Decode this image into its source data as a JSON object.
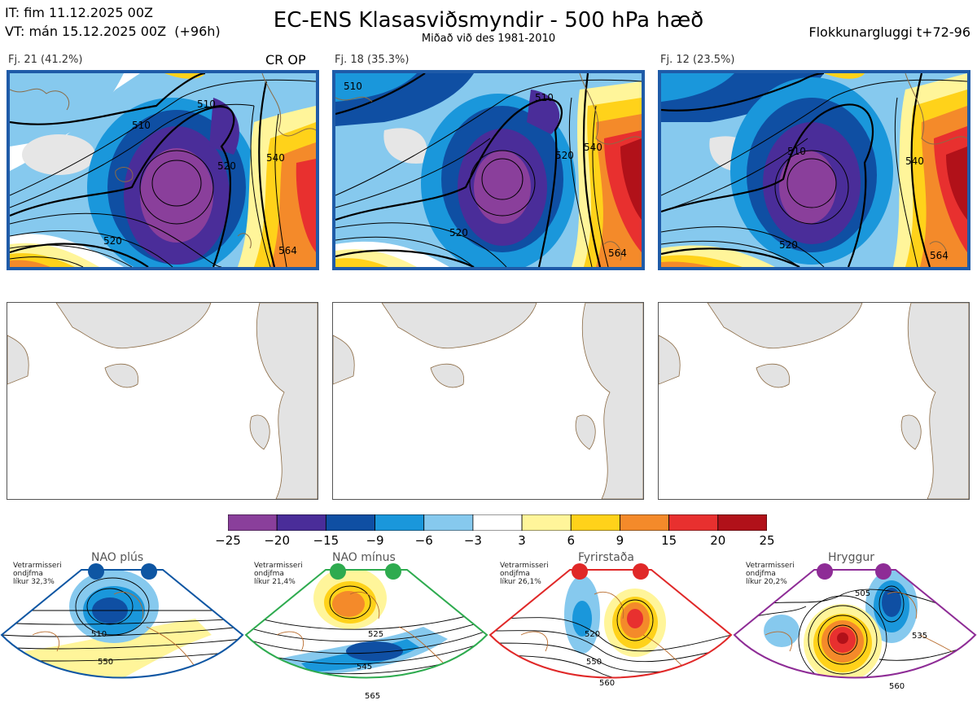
{
  "header": {
    "it_line": "IT: fim 11.12.2025 00Z",
    "vt_line": "VT: mán 15.12.2025 00Z  (+96h)",
    "title": "EC-ENS Klasasviðsmyndir - 500 hPa hæð",
    "subtitle": "Miðað við des 1981-2010",
    "window": "Flokkunargluggi t+72-96"
  },
  "clusters": [
    {
      "label": "Fj. 21 (41.2%)",
      "tag": "CR OP",
      "contours": [
        "510",
        "510",
        "520",
        "520",
        "540",
        "564"
      ]
    },
    {
      "label": "Fj. 18 (35.3%)",
      "tag": "",
      "contours": [
        "510",
        "510",
        "520",
        "520",
        "540",
        "564"
      ]
    },
    {
      "label": "Fj. 12 (23.5%)",
      "tag": "",
      "contours": [
        "510",
        "520",
        "540",
        "564"
      ]
    }
  ],
  "colorbar": {
    "ticks": [
      "−25",
      "−20",
      "−15",
      "−9",
      "−6",
      "−3",
      "3",
      "6",
      "9",
      "15",
      "20",
      "25"
    ],
    "colors": [
      "#8a3f9b",
      "#4a2d99",
      "#0f4fa3",
      "#1a97db",
      "#86c9ee",
      "#ffffff",
      "#fff59a",
      "#ffd21a",
      "#f48a2a",
      "#e8302f",
      "#b11119"
    ]
  },
  "regimes": [
    {
      "name": "NAO plús",
      "info": [
        "Vetrarmisseri",
        "ondjfma",
        "líkur 32,3%"
      ],
      "color": "#0e56a3",
      "contours": [
        "510",
        "550"
      ]
    },
    {
      "name": "NAO mínus",
      "info": [
        "Vetrarmisseri",
        "ondjfma",
        "líkur 21,4%"
      ],
      "color": "#2eab4f",
      "contours": [
        "525",
        "545",
        "565"
      ]
    },
    {
      "name": "Fyrirstaða",
      "info": [
        "Vetrarmisseri",
        "ondjfma",
        "líkur 26,1%"
      ],
      "color": "#e02828",
      "contours": [
        "520",
        "550",
        "560"
      ]
    },
    {
      "name": "Hryggur",
      "info": [
        "Vetrarmisseri",
        "ondjfma",
        "líkur 20,2%"
      ],
      "color": "#8e2c96",
      "contours": [
        "505",
        "535",
        "560"
      ]
    }
  ]
}
